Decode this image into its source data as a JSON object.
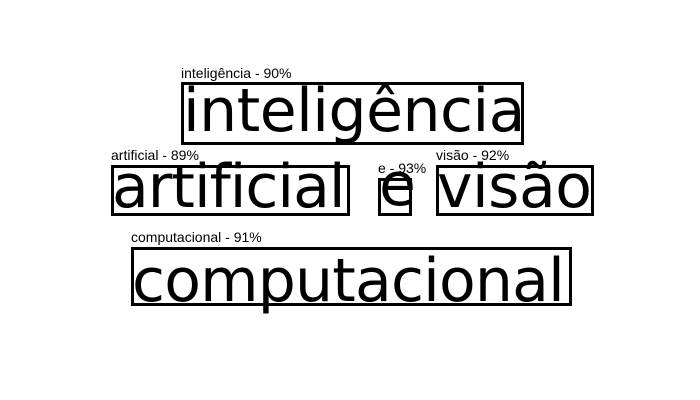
{
  "detections": [
    {
      "label": "inteligência - 90%",
      "word": "inteligência",
      "confidence_percent": 90
    },
    {
      "label": "artificial - 89%",
      "word": "artificial",
      "confidence_percent": 89
    },
    {
      "label": "e - 93%",
      "word": "e",
      "confidence_percent": 93
    },
    {
      "label": "visão - 92%",
      "word": "visão",
      "confidence_percent": 92
    },
    {
      "label": "computacional - 91%",
      "word": "computacional",
      "confidence_percent": 91
    }
  ],
  "colors": {
    "background": "#ffffff",
    "foreground": "#000000"
  }
}
